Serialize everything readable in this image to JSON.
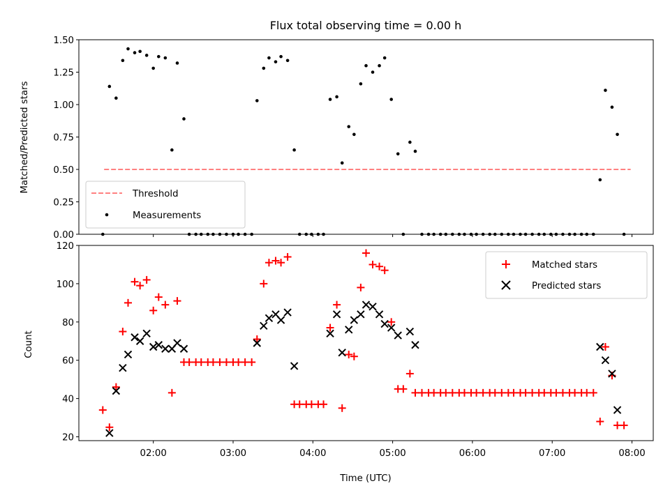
{
  "chart_data": [
    {
      "type": "scatter",
      "title": "Flux total observing time = 0.00 h",
      "ylabel": "Matched/Predicted stars",
      "xlabel": "",
      "xlim": [
        "01:04",
        "08:16"
      ],
      "ylim": [
        0,
        1.5
      ],
      "y_ticks": [
        "0.00",
        "0.25",
        "0.50",
        "0.75",
        "1.00",
        "1.25",
        "1.50"
      ],
      "threshold": {
        "name": "Threshold",
        "value": 0.5,
        "x_start": "01:23",
        "x_end": "07:59",
        "color": "#ff8080"
      },
      "series": [
        {
          "name": "Measurements",
          "color": "#000000",
          "points": [
            [
              "01:22",
              0.0
            ],
            [
              "01:27",
              1.14
            ],
            [
              "01:32",
              1.05
            ],
            [
              "01:37",
              1.34
            ],
            [
              "01:41",
              1.43
            ],
            [
              "01:46",
              1.4
            ],
            [
              "01:50",
              1.41
            ],
            [
              "01:55",
              1.38
            ],
            [
              "02:00",
              1.28
            ],
            [
              "02:04",
              1.37
            ],
            [
              "02:09",
              1.36
            ],
            [
              "02:14",
              0.65
            ],
            [
              "02:18",
              1.32
            ],
            [
              "02:23",
              0.89
            ],
            [
              "02:27",
              0.0
            ],
            [
              "02:32",
              0.0
            ],
            [
              "02:36",
              0.0
            ],
            [
              "02:41",
              0.0
            ],
            [
              "02:45",
              0.0
            ],
            [
              "02:50",
              0.0
            ],
            [
              "02:55",
              0.0
            ],
            [
              "03:00",
              0.0
            ],
            [
              "03:04",
              0.0
            ],
            [
              "03:09",
              0.0
            ],
            [
              "03:14",
              0.0
            ],
            [
              "03:18",
              1.03
            ],
            [
              "03:23",
              1.28
            ],
            [
              "03:27",
              1.36
            ],
            [
              "03:32",
              1.33
            ],
            [
              "03:36",
              1.37
            ],
            [
              "03:41",
              1.34
            ],
            [
              "03:46",
              0.65
            ],
            [
              "03:50",
              0.0
            ],
            [
              "03:55",
              0.0
            ],
            [
              "03:59",
              0.0
            ],
            [
              "04:04",
              0.0
            ],
            [
              "04:08",
              0.0
            ],
            [
              "04:13",
              1.04
            ],
            [
              "04:18",
              1.06
            ],
            [
              "04:22",
              0.55
            ],
            [
              "04:27",
              0.83
            ],
            [
              "04:31",
              0.77
            ],
            [
              "04:36",
              1.16
            ],
            [
              "04:40",
              1.3
            ],
            [
              "04:45",
              1.25
            ],
            [
              "04:50",
              1.3
            ],
            [
              "04:54",
              1.36
            ],
            [
              "04:59",
              1.04
            ],
            [
              "05:04",
              0.62
            ],
            [
              "05:08",
              0.0
            ],
            [
              "05:13",
              0.71
            ],
            [
              "05:17",
              0.64
            ],
            [
              "05:22",
              0.0
            ],
            [
              "05:27",
              0.0
            ],
            [
              "05:31",
              0.0
            ],
            [
              "05:36",
              0.0
            ],
            [
              "05:40",
              0.0
            ],
            [
              "05:45",
              0.0
            ],
            [
              "05:50",
              0.0
            ],
            [
              "05:54",
              0.0
            ],
            [
              "05:59",
              0.0
            ],
            [
              "06:03",
              0.0
            ],
            [
              "06:08",
              0.0
            ],
            [
              "06:13",
              0.0
            ],
            [
              "06:17",
              0.0
            ],
            [
              "06:22",
              0.0
            ],
            [
              "06:27",
              0.0
            ],
            [
              "06:31",
              0.0
            ],
            [
              "06:36",
              0.0
            ],
            [
              "06:40",
              0.0
            ],
            [
              "06:45",
              0.0
            ],
            [
              "06:50",
              0.0
            ],
            [
              "06:54",
              0.0
            ],
            [
              "06:59",
              0.0
            ],
            [
              "07:03",
              0.0
            ],
            [
              "07:08",
              0.0
            ],
            [
              "07:13",
              0.0
            ],
            [
              "07:17",
              0.0
            ],
            [
              "07:22",
              0.0
            ],
            [
              "07:26",
              0.0
            ],
            [
              "07:31",
              0.0
            ],
            [
              "07:36",
              0.42
            ],
            [
              "07:40",
              1.11
            ],
            [
              "07:45",
              0.98
            ],
            [
              "07:49",
              0.77
            ],
            [
              "07:54",
              0.0
            ]
          ]
        }
      ],
      "legend": "lower-left"
    },
    {
      "type": "scatter",
      "title": "",
      "xlabel": "Time (UTC)",
      "ylabel": "Count",
      "xlim": [
        "01:04",
        "08:16"
      ],
      "ylim": [
        18,
        120
      ],
      "x_ticks": [
        "02:00",
        "03:00",
        "04:00",
        "05:00",
        "06:00",
        "07:00",
        "08:00"
      ],
      "y_ticks": [
        "20",
        "40",
        "60",
        "80",
        "100",
        "120"
      ],
      "series": [
        {
          "name": "Matched stars",
          "marker": "plus",
          "color": "#ff0000",
          "points": [
            [
              "01:22",
              34
            ],
            [
              "01:27",
              25
            ],
            [
              "01:32",
              46
            ],
            [
              "01:37",
              75
            ],
            [
              "01:41",
              90
            ],
            [
              "01:46",
              101
            ],
            [
              "01:50",
              99
            ],
            [
              "01:55",
              102
            ],
            [
              "02:00",
              86
            ],
            [
              "02:04",
              93
            ],
            [
              "02:09",
              89
            ],
            [
              "02:14",
              43
            ],
            [
              "02:18",
              91
            ],
            [
              "02:23",
              59
            ],
            [
              "02:27",
              59
            ],
            [
              "02:32",
              59
            ],
            [
              "02:36",
              59
            ],
            [
              "02:41",
              59
            ],
            [
              "02:45",
              59
            ],
            [
              "02:50",
              59
            ],
            [
              "02:55",
              59
            ],
            [
              "03:00",
              59
            ],
            [
              "03:04",
              59
            ],
            [
              "03:09",
              59
            ],
            [
              "03:14",
              59
            ],
            [
              "03:18",
              71
            ],
            [
              "03:23",
              100
            ],
            [
              "03:27",
              111
            ],
            [
              "03:32",
              112
            ],
            [
              "03:36",
              111
            ],
            [
              "03:41",
              114
            ],
            [
              "03:46",
              37
            ],
            [
              "03:50",
              37
            ],
            [
              "03:55",
              37
            ],
            [
              "03:59",
              37
            ],
            [
              "04:04",
              37
            ],
            [
              "04:08",
              37
            ],
            [
              "04:13",
              77
            ],
            [
              "04:18",
              89
            ],
            [
              "04:22",
              35
            ],
            [
              "04:27",
              63
            ],
            [
              "04:31",
              62
            ],
            [
              "04:36",
              98
            ],
            [
              "04:40",
              116
            ],
            [
              "04:45",
              110
            ],
            [
              "04:50",
              109
            ],
            [
              "04:54",
              107
            ],
            [
              "04:59",
              80
            ],
            [
              "05:04",
              45
            ],
            [
              "05:08",
              45
            ],
            [
              "05:13",
              53
            ],
            [
              "05:17",
              43
            ],
            [
              "05:22",
              43
            ],
            [
              "05:27",
              43
            ],
            [
              "05:31",
              43
            ],
            [
              "05:36",
              43
            ],
            [
              "05:40",
              43
            ],
            [
              "05:45",
              43
            ],
            [
              "05:50",
              43
            ],
            [
              "05:54",
              43
            ],
            [
              "05:59",
              43
            ],
            [
              "06:03",
              43
            ],
            [
              "06:08",
              43
            ],
            [
              "06:13",
              43
            ],
            [
              "06:17",
              43
            ],
            [
              "06:22",
              43
            ],
            [
              "06:27",
              43
            ],
            [
              "06:31",
              43
            ],
            [
              "06:36",
              43
            ],
            [
              "06:40",
              43
            ],
            [
              "06:45",
              43
            ],
            [
              "06:50",
              43
            ],
            [
              "06:54",
              43
            ],
            [
              "06:59",
              43
            ],
            [
              "07:03",
              43
            ],
            [
              "07:08",
              43
            ],
            [
              "07:13",
              43
            ],
            [
              "07:17",
              43
            ],
            [
              "07:22",
              43
            ],
            [
              "07:26",
              43
            ],
            [
              "07:31",
              43
            ],
            [
              "07:36",
              28
            ],
            [
              "07:40",
              67
            ],
            [
              "07:45",
              52
            ],
            [
              "07:49",
              26
            ],
            [
              "07:54",
              26
            ]
          ]
        },
        {
          "name": "Predicted stars",
          "marker": "x",
          "color": "#000000",
          "points": [
            [
              "01:27",
              22
            ],
            [
              "01:32",
              44
            ],
            [
              "01:37",
              56
            ],
            [
              "01:41",
              63
            ],
            [
              "01:46",
              72
            ],
            [
              "01:50",
              70
            ],
            [
              "01:55",
              74
            ],
            [
              "02:00",
              67
            ],
            [
              "02:04",
              68
            ],
            [
              "02:09",
              66
            ],
            [
              "02:14",
              66
            ],
            [
              "02:18",
              69
            ],
            [
              "02:23",
              66
            ],
            [
              "03:18",
              69
            ],
            [
              "03:23",
              78
            ],
            [
              "03:27",
              82
            ],
            [
              "03:32",
              84
            ],
            [
              "03:36",
              81
            ],
            [
              "03:41",
              85
            ],
            [
              "03:46",
              57
            ],
            [
              "04:13",
              74
            ],
            [
              "04:18",
              84
            ],
            [
              "04:22",
              64
            ],
            [
              "04:27",
              76
            ],
            [
              "04:31",
              81
            ],
            [
              "04:36",
              84
            ],
            [
              "04:40",
              89
            ],
            [
              "04:45",
              88
            ],
            [
              "04:50",
              84
            ],
            [
              "04:54",
              79
            ],
            [
              "04:59",
              77
            ],
            [
              "05:04",
              73
            ],
            [
              "05:13",
              75
            ],
            [
              "05:17",
              68
            ],
            [
              "07:36",
              67
            ],
            [
              "07:40",
              60
            ],
            [
              "07:45",
              53
            ],
            [
              "07:49",
              34
            ]
          ]
        }
      ],
      "legend": "upper-right"
    }
  ]
}
